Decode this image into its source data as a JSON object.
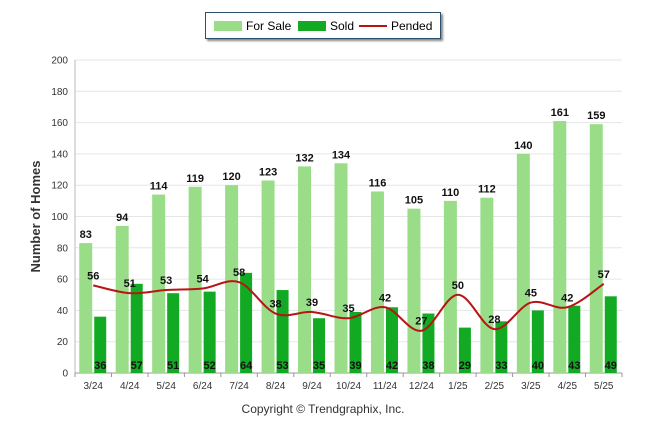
{
  "legend": [
    {
      "label": "For Sale",
      "color": "#99dd88"
    },
    {
      "label": "Sold",
      "color": "#11aa22"
    },
    {
      "label": "Pended",
      "color": "#b81414"
    }
  ],
  "copyright": "Copyright © Trendgraphix, Inc.",
  "chart_data": {
    "type": "bar",
    "ylabel": "Number of Homes",
    "xlabel": "",
    "ylim": [
      0,
      200
    ],
    "yticks": [
      0,
      20,
      40,
      60,
      80,
      100,
      120,
      140,
      160,
      180,
      200
    ],
    "grid": true,
    "legend_position": "top-center",
    "categories": [
      "3/24",
      "4/24",
      "5/24",
      "6/24",
      "7/24",
      "8/24",
      "9/24",
      "10/24",
      "11/24",
      "12/24",
      "1/25",
      "2/25",
      "3/25",
      "4/25",
      "5/25"
    ],
    "series": [
      {
        "name": "For Sale",
        "type": "bar",
        "color": "#99dd88",
        "values": [
          83,
          94,
          114,
          119,
          120,
          123,
          132,
          134,
          116,
          105,
          110,
          112,
          140,
          161,
          159
        ]
      },
      {
        "name": "Sold",
        "type": "bar",
        "color": "#11aa22",
        "values": [
          36,
          57,
          51,
          52,
          64,
          53,
          35,
          39,
          42,
          38,
          29,
          33,
          40,
          43,
          49
        ]
      },
      {
        "name": "Pended",
        "type": "line",
        "color": "#b81414",
        "values": [
          56,
          51,
          53,
          54,
          58,
          38,
          39,
          35,
          42,
          27,
          50,
          28,
          45,
          42,
          57
        ]
      }
    ]
  }
}
